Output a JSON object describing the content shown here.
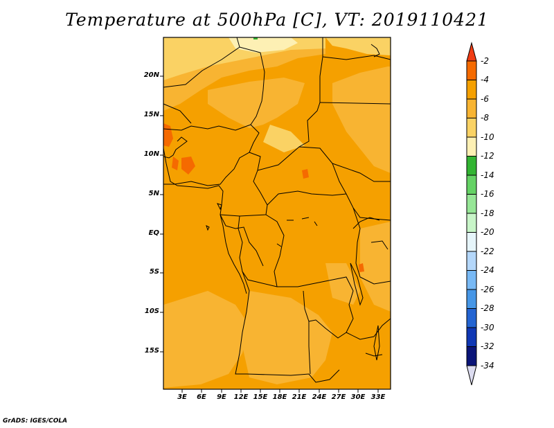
{
  "title": "Temperature at 500hPa [C], VT: 2019110421",
  "credit": "GrADS: IGES/COLA",
  "lat_labels": [
    "20N",
    "15N",
    "10N",
    "5N",
    "EQ",
    "5S",
    "10S",
    "15S"
  ],
  "lon_labels": [
    "3E",
    "6E",
    "9E",
    "12E",
    "15E",
    "18E",
    "21E",
    "24E",
    "27E",
    "30E",
    "33E"
  ],
  "colorbar": {
    "labels": [
      "-2",
      "-4",
      "-6",
      "-8",
      "-10",
      "-12",
      "-14",
      "-16",
      "-18",
      "-20",
      "-22",
      "-24",
      "-26",
      "-28",
      "-30",
      "-32",
      "-34"
    ],
    "colors": [
      "#f03c14",
      "#f56a00",
      "#f5a000",
      "#f8b432",
      "#fad264",
      "#fdf0b4",
      "#32b432",
      "#64d264",
      "#96e696",
      "#c8f5c8",
      "#e6f5fa",
      "#b4d7fa",
      "#78b9f5",
      "#4696e6",
      "#2364d2",
      "#0f37b4",
      "#0a1478",
      "#dcdcf0"
    ]
  },
  "colors": {
    "field_base": "#f5a000",
    "field_warm": "#f56a00",
    "field_cool": "#f8b432",
    "field_cooler": "#fad264",
    "field_coolest": "#fdf0b4",
    "border": "#000000"
  }
}
